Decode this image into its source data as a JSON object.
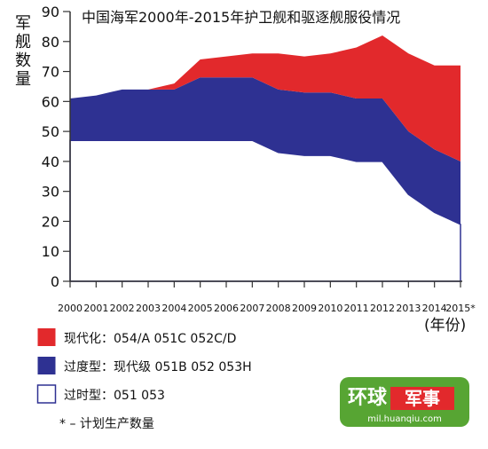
{
  "chart_data": {
    "type": "area",
    "stacked": true,
    "title": "中国海军2000年-2015年护卫舰和驱逐舰服役情况",
    "ylabel": "军舰数量",
    "xlabel": "(年份)",
    "ylim": [
      0,
      90
    ],
    "yticks": [
      0,
      10,
      20,
      30,
      40,
      50,
      60,
      70,
      80,
      90
    ],
    "x": [
      "2000",
      "2001",
      "2002",
      "2003",
      "2004",
      "2005",
      "2006",
      "2007",
      "2008",
      "2009",
      "2010",
      "2011",
      "2012",
      "2013",
      "2014",
      "2015*"
    ],
    "grid": false,
    "legend_position": "bottom-left",
    "series": [
      {
        "name": "过时型：051  053",
        "color": "#ffffff",
        "stroke": "#2e3192",
        "values": [
          47,
          47,
          47,
          47,
          47,
          47,
          47,
          47,
          43,
          42,
          42,
          40,
          40,
          29,
          23,
          19
        ]
      },
      {
        "name": "过度型：现代级  051B  052  053H",
        "color": "#2e3192",
        "values": [
          14,
          15,
          17,
          17,
          17,
          21,
          21,
          21,
          21,
          21,
          21,
          21,
          21,
          21,
          21,
          21
        ]
      },
      {
        "name": "现代化：054/A 051C 052C/D",
        "color": "#e2292c",
        "values": [
          0,
          0,
          0,
          0,
          2,
          6,
          7,
          8,
          12,
          12,
          13,
          17,
          21,
          26,
          28,
          32
        ]
      }
    ],
    "footnote": "* –  计划生产数量"
  },
  "watermark": {
    "brand_a": "环球",
    "brand_b": "军事",
    "url": "mil.huanqiu.com"
  }
}
